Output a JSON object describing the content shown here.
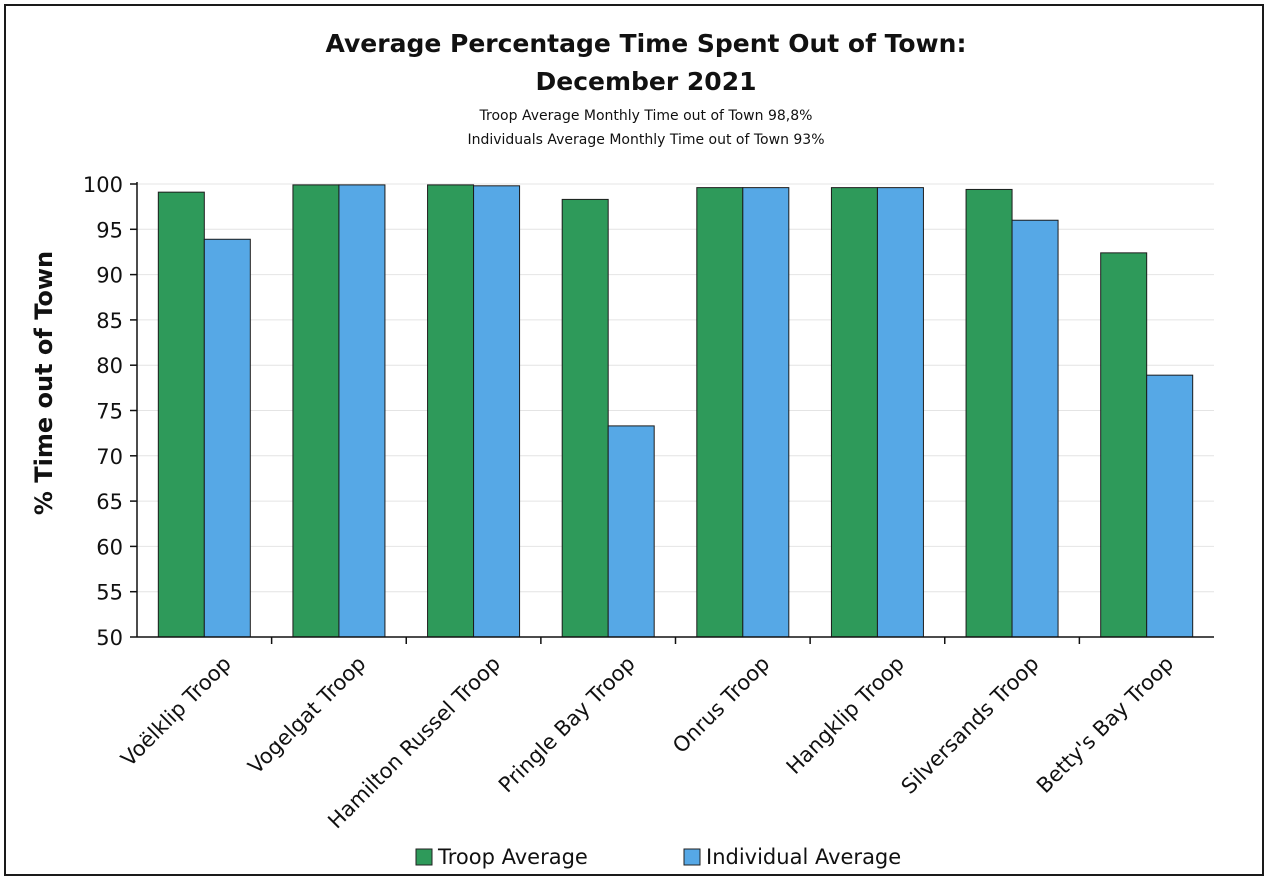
{
  "chart_data": {
    "type": "bar",
    "title_line1": "Average Percentage Time Spent Out of Town:",
    "title_line2": "December 2021",
    "subtitle_line1": "Troop Average Monthly Time out of Town 98,8%",
    "subtitle_line2": "Individuals Average Monthly Time out of Town 93%",
    "xlabel": "",
    "ylabel": "% Time out of Town",
    "ylim": [
      50,
      100
    ],
    "yticks": [
      "50",
      "55",
      "60",
      "65",
      "70",
      "75",
      "80",
      "85",
      "90",
      "95",
      "100"
    ],
    "grid": true,
    "legend_position": "bottom",
    "categories": [
      "Voëlklip Troop",
      "Vogelgat Troop",
      "Hamilton Russel Troop",
      "Pringle Bay Troop",
      "Onrus Troop",
      "Hangklip Troop",
      "Silversands Troop",
      "Betty's Bay Troop"
    ],
    "series": [
      {
        "name": "Troop Average",
        "color": "#2e9a5a",
        "values": [
          99.1,
          99.9,
          99.9,
          98.3,
          99.6,
          99.6,
          99.4,
          92.4
        ]
      },
      {
        "name": "Individual Average",
        "color": "#56a8e6",
        "values": [
          93.9,
          99.9,
          99.8,
          73.3,
          99.6,
          99.6,
          96.0,
          78.9
        ]
      }
    ]
  }
}
